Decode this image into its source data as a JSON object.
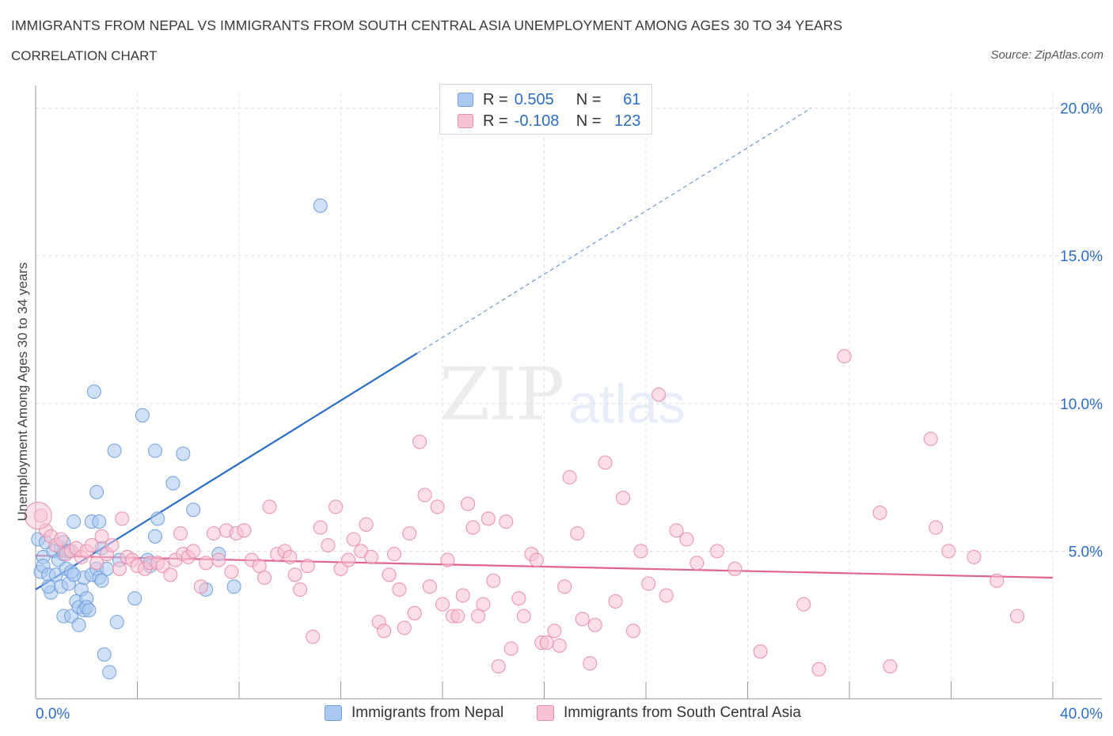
{
  "header": {
    "title": "IMMIGRANTS FROM NEPAL VS IMMIGRANTS FROM SOUTH CENTRAL ASIA UNEMPLOYMENT AMONG AGES 30 TO 34 YEARS",
    "subtitle": "CORRELATION CHART",
    "source": "Source: ZipAtlas.com"
  },
  "watermark": {
    "zip": "ZIP",
    "atlas": "atlas"
  },
  "legend": {
    "rows": [
      {
        "r_label": "R =",
        "r_value": "0.505",
        "n_label": "N =",
        "n_value": "61",
        "color": "#aac8f0",
        "border": "#6f9fdc"
      },
      {
        "r_label": "R =",
        "r_value": "-0.108",
        "n_label": "N =",
        "n_value": "123",
        "color": "#f7c3d3",
        "border": "#e88daa"
      }
    ]
  },
  "chart_data": {
    "type": "scatter",
    "title": "IMMIGRANTS FROM NEPAL VS IMMIGRANTS FROM SOUTH CENTRAL ASIA UNEMPLOYMENT AMONG AGES 30 TO 34 YEARS",
    "xlabel": "",
    "ylabel": "Unemployment Among Ages 30 to 34 years",
    "xlim": [
      0,
      40
    ],
    "ylim": [
      0,
      20.5
    ],
    "x_tick_labels": [
      "0.0%",
      "40.0%"
    ],
    "y_ticks": [
      5,
      10,
      15,
      20
    ],
    "y_tick_labels": [
      "5.0%",
      "10.0%",
      "15.0%",
      "20.0%"
    ],
    "grid": true,
    "legend_position": "bottom",
    "series": [
      {
        "name": "Immigrants from Nepal",
        "color": "#6f9fdc",
        "fill": "#aac8f0",
        "trend": {
          "x": [
            0,
            15
          ],
          "y": [
            3.7,
            11.7
          ],
          "extend_to_x": 30.5,
          "extend_to_y": 20.0,
          "color": "#2c6dc6"
        },
        "points": [
          [
            0.1,
            5.4
          ],
          [
            0.2,
            4.3
          ],
          [
            0.3,
            4.8
          ],
          [
            0.3,
            4.5
          ],
          [
            0.4,
            5.3
          ],
          [
            0.5,
            4.2
          ],
          [
            0.6,
            3.6
          ],
          [
            0.7,
            5.0
          ],
          [
            0.8,
            4.2
          ],
          [
            0.9,
            4.7
          ],
          [
            1.0,
            5.1
          ],
          [
            1.0,
            3.8
          ],
          [
            1.1,
            5.3
          ],
          [
            1.1,
            2.8
          ],
          [
            1.2,
            4.4
          ],
          [
            1.3,
            5.0
          ],
          [
            1.3,
            3.9
          ],
          [
            1.4,
            4.3
          ],
          [
            1.4,
            2.8
          ],
          [
            1.5,
            6.0
          ],
          [
            1.6,
            3.3
          ],
          [
            1.7,
            3.1
          ],
          [
            1.7,
            2.5
          ],
          [
            1.8,
            3.7
          ],
          [
            1.9,
            4.1
          ],
          [
            1.9,
            3.0
          ],
          [
            2.0,
            3.4
          ],
          [
            2.0,
            3.1
          ],
          [
            2.1,
            3.0
          ],
          [
            2.2,
            4.2
          ],
          [
            2.2,
            6.0
          ],
          [
            2.3,
            10.4
          ],
          [
            2.4,
            7.0
          ],
          [
            2.4,
            4.4
          ],
          [
            2.5,
            4.1
          ],
          [
            2.5,
            6.0
          ],
          [
            2.6,
            5.1
          ],
          [
            2.7,
            1.5
          ],
          [
            2.8,
            4.4
          ],
          [
            2.9,
            0.9
          ],
          [
            3.1,
            8.4
          ],
          [
            3.2,
            2.6
          ],
          [
            3.3,
            4.7
          ],
          [
            3.9,
            3.4
          ],
          [
            4.2,
            9.6
          ],
          [
            4.4,
            4.7
          ],
          [
            4.7,
            8.4
          ],
          [
            4.7,
            5.5
          ],
          [
            4.8,
            6.1
          ],
          [
            5.4,
            7.3
          ],
          [
            5.8,
            8.3
          ],
          [
            6.2,
            6.4
          ],
          [
            6.7,
            3.7
          ],
          [
            7.2,
            4.9
          ],
          [
            7.8,
            3.8
          ],
          [
            11.2,
            16.7
          ],
          [
            4.5,
            4.5
          ],
          [
            1.5,
            4.2
          ],
          [
            0.5,
            3.8
          ],
          [
            2.6,
            4.0
          ],
          [
            1.1,
            4.9
          ]
        ]
      },
      {
        "name": "Immigrants from South Central Asia",
        "color": "#e88daa",
        "fill": "#f7c3d3",
        "trend": {
          "x": [
            0,
            40
          ],
          "y": [
            4.85,
            4.1
          ],
          "color": "#e0648f"
        },
        "points": [
          [
            0.2,
            6.2
          ],
          [
            0.4,
            5.7
          ],
          [
            0.6,
            5.5
          ],
          [
            0.8,
            5.2
          ],
          [
            1.0,
            5.4
          ],
          [
            1.2,
            4.9
          ],
          [
            1.4,
            5.0
          ],
          [
            1.6,
            5.1
          ],
          [
            1.8,
            4.8
          ],
          [
            2.0,
            5.0
          ],
          [
            2.2,
            5.2
          ],
          [
            2.4,
            4.6
          ],
          [
            2.6,
            5.5
          ],
          [
            2.8,
            4.9
          ],
          [
            3.0,
            5.2
          ],
          [
            3.3,
            4.4
          ],
          [
            3.4,
            6.1
          ],
          [
            3.6,
            4.8
          ],
          [
            3.8,
            4.7
          ],
          [
            4.0,
            4.5
          ],
          [
            4.3,
            4.4
          ],
          [
            4.5,
            4.6
          ],
          [
            4.8,
            4.6
          ],
          [
            5.0,
            4.5
          ],
          [
            5.3,
            4.2
          ],
          [
            5.5,
            4.7
          ],
          [
            5.7,
            5.6
          ],
          [
            5.8,
            4.9
          ],
          [
            6.0,
            4.8
          ],
          [
            6.2,
            5.0
          ],
          [
            6.5,
            3.8
          ],
          [
            6.7,
            4.6
          ],
          [
            7.0,
            5.6
          ],
          [
            7.2,
            4.7
          ],
          [
            7.5,
            5.7
          ],
          [
            7.7,
            4.3
          ],
          [
            7.9,
            5.6
          ],
          [
            8.2,
            5.7
          ],
          [
            8.5,
            4.7
          ],
          [
            8.8,
            4.5
          ],
          [
            9.0,
            4.1
          ],
          [
            9.2,
            6.5
          ],
          [
            9.5,
            4.9
          ],
          [
            9.8,
            5.0
          ],
          [
            10.0,
            4.8
          ],
          [
            10.2,
            4.2
          ],
          [
            10.4,
            3.7
          ],
          [
            10.7,
            4.5
          ],
          [
            10.9,
            2.1
          ],
          [
            11.2,
            5.8
          ],
          [
            11.5,
            5.2
          ],
          [
            11.8,
            6.5
          ],
          [
            12.0,
            4.4
          ],
          [
            12.3,
            4.7
          ],
          [
            12.5,
            5.4
          ],
          [
            12.8,
            5.0
          ],
          [
            13.0,
            5.9
          ],
          [
            13.2,
            4.8
          ],
          [
            13.5,
            2.6
          ],
          [
            13.7,
            2.3
          ],
          [
            13.9,
            4.2
          ],
          [
            14.1,
            4.9
          ],
          [
            14.3,
            3.7
          ],
          [
            14.5,
            2.4
          ],
          [
            14.7,
            5.6
          ],
          [
            14.9,
            2.9
          ],
          [
            15.1,
            8.7
          ],
          [
            15.3,
            6.9
          ],
          [
            15.5,
            3.8
          ],
          [
            15.8,
            6.5
          ],
          [
            16.0,
            3.2
          ],
          [
            16.2,
            4.7
          ],
          [
            16.4,
            2.8
          ],
          [
            16.6,
            2.8
          ],
          [
            16.8,
            3.5
          ],
          [
            17.0,
            6.6
          ],
          [
            17.2,
            5.8
          ],
          [
            17.4,
            2.8
          ],
          [
            17.6,
            3.2
          ],
          [
            17.8,
            6.1
          ],
          [
            18.0,
            4.0
          ],
          [
            18.2,
            1.1
          ],
          [
            18.5,
            6.0
          ],
          [
            18.7,
            1.7
          ],
          [
            19.0,
            3.4
          ],
          [
            19.2,
            2.8
          ],
          [
            19.5,
            4.9
          ],
          [
            19.7,
            4.7
          ],
          [
            19.9,
            1.9
          ],
          [
            20.1,
            1.9
          ],
          [
            20.4,
            2.3
          ],
          [
            20.6,
            1.8
          ],
          [
            20.8,
            3.8
          ],
          [
            21.0,
            7.5
          ],
          [
            21.3,
            5.6
          ],
          [
            21.5,
            2.7
          ],
          [
            21.8,
            1.2
          ],
          [
            22.0,
            2.5
          ],
          [
            22.4,
            8.0
          ],
          [
            22.8,
            3.3
          ],
          [
            23.1,
            6.8
          ],
          [
            23.5,
            2.3
          ],
          [
            23.8,
            5.0
          ],
          [
            24.1,
            3.9
          ],
          [
            24.5,
            10.3
          ],
          [
            24.8,
            3.5
          ],
          [
            25.2,
            5.7
          ],
          [
            25.6,
            5.4
          ],
          [
            26.0,
            4.6
          ],
          [
            26.8,
            5.0
          ],
          [
            27.5,
            4.4
          ],
          [
            28.5,
            1.6
          ],
          [
            30.2,
            3.2
          ],
          [
            30.8,
            1.0
          ],
          [
            31.8,
            11.6
          ],
          [
            33.2,
            6.3
          ],
          [
            33.6,
            1.1
          ],
          [
            35.2,
            8.8
          ],
          [
            35.4,
            5.8
          ],
          [
            35.9,
            5.0
          ],
          [
            36.9,
            4.8
          ],
          [
            37.8,
            4.0
          ],
          [
            38.6,
            2.8
          ]
        ]
      }
    ]
  },
  "bottom_legend": [
    "Immigrants from Nepal",
    "Immigrants from South Central Asia"
  ]
}
